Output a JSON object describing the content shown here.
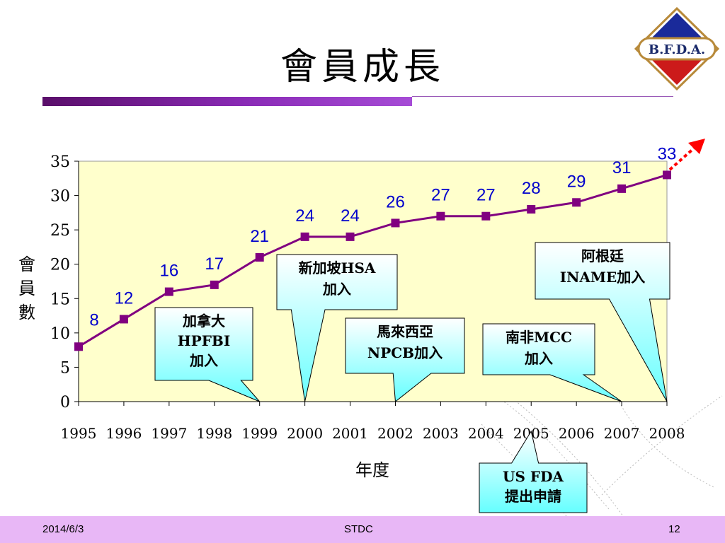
{
  "title": "會員成長",
  "logo_text": "B.F.D.A.",
  "footer": {
    "date": "2014/6/3",
    "center": "STDC",
    "page": "12"
  },
  "colors": {
    "plot_bg": "#ffffcc",
    "line": "#800080",
    "marker": "#800080",
    "labels": "#0000cc",
    "callout_top": "#ffffff",
    "callout_bottom": "#66ffff",
    "arrow": "#ff0000",
    "footer": "#e8b7f6"
  },
  "chart_data": {
    "type": "line",
    "title": "會員成長",
    "xlabel": "年度",
    "ylabel": "會員數",
    "categories": [
      "1995",
      "1996",
      "1997",
      "1998",
      "1999",
      "2000",
      "2001",
      "2002",
      "2003",
      "2004",
      "2005",
      "2006",
      "2007",
      "2008"
    ],
    "values": [
      8,
      12,
      16,
      17,
      21,
      24,
      24,
      26,
      27,
      27,
      28,
      29,
      31,
      33
    ],
    "data_labels": [
      "8",
      "12",
      "16",
      "17",
      "21",
      "24",
      "24",
      "26",
      "27",
      "27",
      "28",
      "29",
      "31",
      "33"
    ],
    "ylim": [
      0,
      35
    ],
    "yticks": [
      0,
      5,
      10,
      15,
      20,
      25,
      30,
      35
    ],
    "grid": false,
    "annotations": [
      {
        "lines": [
          "加拿大",
          "HPFBI",
          "加入"
        ],
        "year": "1999"
      },
      {
        "lines": [
          "新加坡HSA",
          "加入"
        ],
        "year": "2000"
      },
      {
        "lines": [
          "馬來西亞",
          "NPCB加入"
        ],
        "year": "2002"
      },
      {
        "lines": [
          "南非MCC",
          "加入"
        ],
        "year": "2007"
      },
      {
        "lines": [
          "阿根廷",
          "INAME加入"
        ],
        "year": "2008"
      },
      {
        "lines": [
          "US FDA",
          "提出申請"
        ],
        "year": "2005"
      }
    ]
  }
}
